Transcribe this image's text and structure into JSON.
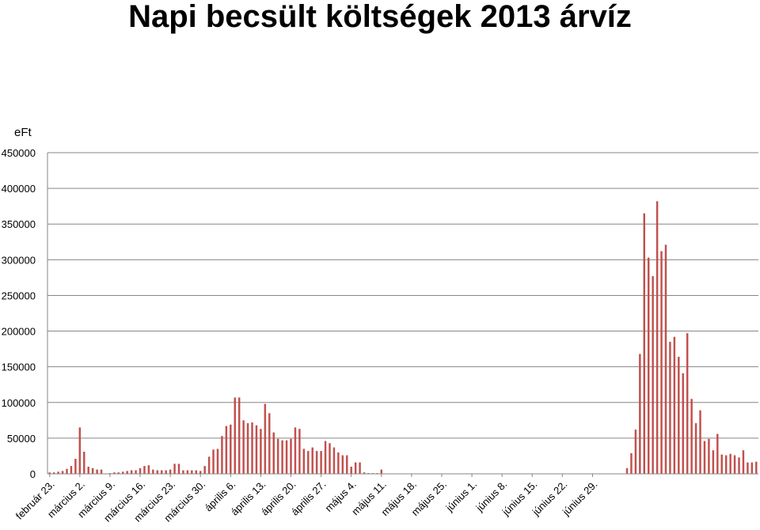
{
  "title": "Napi becsült költségek 2013 árvíz",
  "chart_data": {
    "type": "bar",
    "title": "Napi becsült költségek 2013 árvíz",
    "ylabel": "eFt",
    "xlabel": "",
    "ylim": [
      0,
      450000
    ],
    "yticks": [
      0,
      50000,
      100000,
      150000,
      200000,
      250000,
      300000,
      350000,
      400000,
      450000
    ],
    "grid": true,
    "legend": "none",
    "bar_color": "#c0504d",
    "x_tick_labels": [
      "február 23.",
      "március 2.",
      "március 9.",
      "március 16.",
      "március 23.",
      "március 30.",
      "április 6.",
      "április 13.",
      "április 20.",
      "április 27.",
      "május 4.",
      "május 11.",
      "május 18.",
      "május 25.",
      "június 1.",
      "június 8.",
      "június 15.",
      "június 22.",
      "június 29."
    ],
    "tick_every": 7,
    "start_label": "február 23.",
    "values": [
      2000,
      2000,
      3000,
      4000,
      7000,
      11000,
      21000,
      65000,
      31000,
      10000,
      8000,
      6000,
      6000,
      0,
      1000,
      2000,
      2000,
      3000,
      4000,
      5000,
      5000,
      8000,
      11000,
      12000,
      6000,
      5000,
      5000,
      5000,
      6000,
      14000,
      14000,
      5000,
      5000,
      5000,
      5000,
      4000,
      11000,
      24000,
      34000,
      35000,
      53000,
      67000,
      69000,
      107000,
      107000,
      75000,
      71000,
      72000,
      68000,
      63000,
      98000,
      85000,
      58000,
      49000,
      47000,
      47000,
      49000,
      65000,
      63000,
      35000,
      32000,
      37000,
      32000,
      32000,
      46000,
      43000,
      37000,
      30000,
      26000,
      26000,
      10000,
      16000,
      16000,
      2000,
      1000,
      1000,
      1000,
      6000,
      0,
      0,
      0,
      0,
      0,
      0,
      0,
      0,
      0,
      0,
      0,
      0,
      0,
      0,
      0,
      0,
      0,
      0,
      0,
      0,
      0,
      0,
      0,
      0,
      0,
      0,
      0,
      0,
      0,
      0,
      0,
      0,
      0,
      0,
      0,
      0,
      0,
      0,
      0,
      0,
      0,
      0,
      0,
      0,
      0,
      0,
      0,
      0,
      0,
      0,
      0,
      0,
      0,
      0,
      0,
      0,
      8000,
      29000,
      62000,
      168000,
      365000,
      303000,
      277000,
      382000,
      312000,
      321000,
      185000,
      192000,
      164000,
      141000,
      197000,
      105000,
      71000,
      89000,
      46000,
      49000,
      33000,
      56000,
      27000,
      26000,
      28000,
      26000,
      23000,
      33000,
      16000,
      16000,
      17000
    ]
  }
}
